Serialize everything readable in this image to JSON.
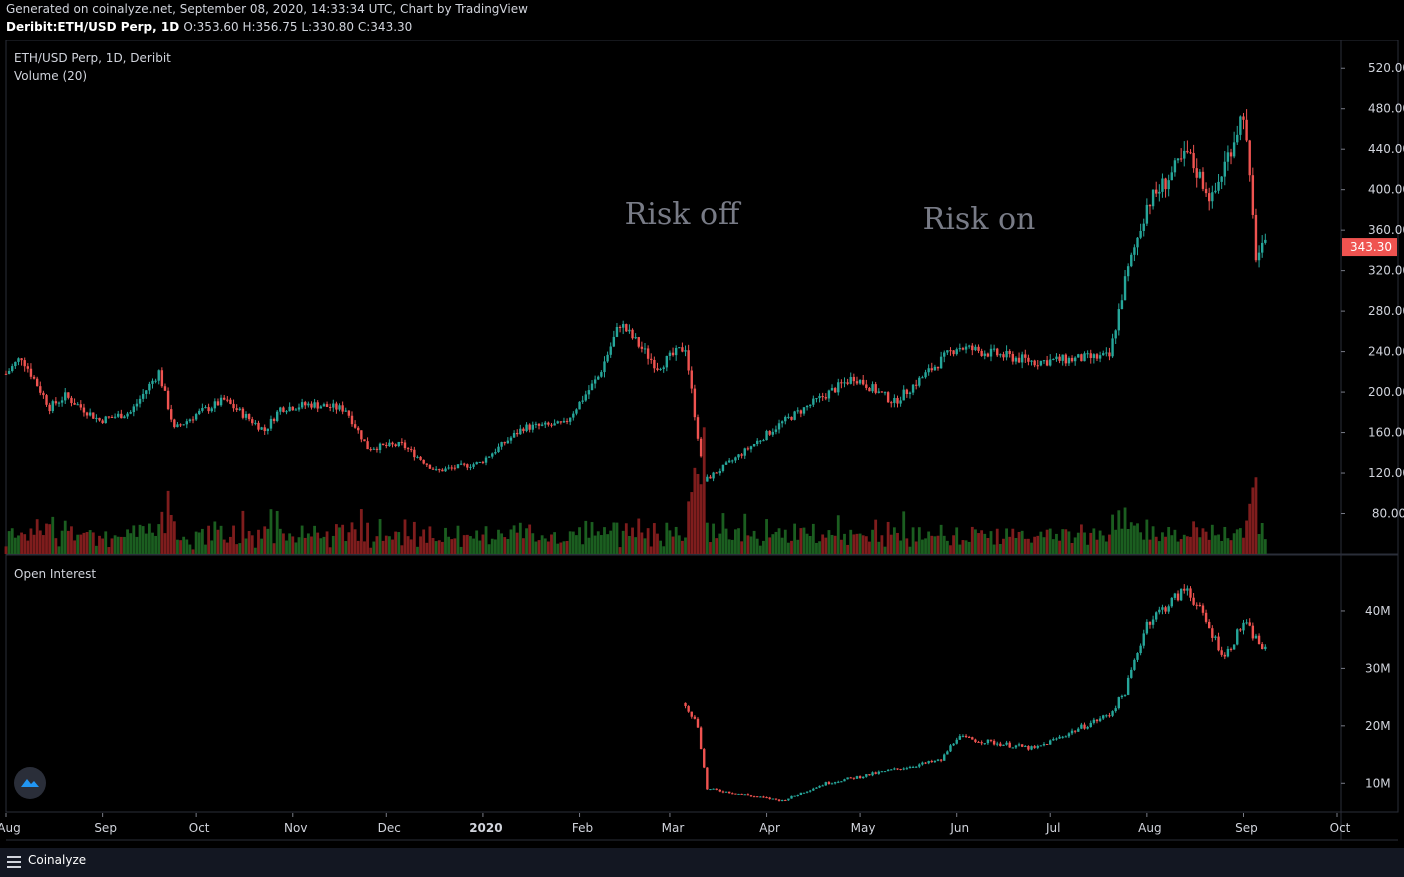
{
  "header": {
    "generated": "Generated on coinalyze.net, September 08, 2020, 14:33:34 UTC, Chart by TradingView",
    "symbol_line": "Deribit:ETH/USD Perp, 1D",
    "ohlc": "O:353.60 H:356.75 L:330.80 C:343.30"
  },
  "footer": {
    "brand": "Coinalyze"
  },
  "colors": {
    "up": "#26a69a",
    "down": "#ef5350",
    "up_vol": "#1b5e20",
    "down_vol": "#7f1d1d",
    "annotation": "#787b86",
    "last_price": "#ef5350"
  },
  "icons": [
    "menu-icon",
    "coinalyze-logo-icon"
  ],
  "chart_data": [
    {
      "type": "candlestick",
      "title": "ETH/USD Perp, 1D, Deribit",
      "indicator": "Volume (20)",
      "ylim": [
        40,
        540
      ],
      "y_ticks": [
        "520.00",
        "480.00",
        "440.00",
        "400.00",
        "360.00",
        "320.00",
        "280.00",
        "240.00",
        "200.00",
        "160.00",
        "120.00",
        "80.00"
      ],
      "last_price_label": "343.30",
      "annotations": [
        "Risk off",
        "Risk on"
      ],
      "x_ticks": [
        "Aug",
        "Sep",
        "Oct",
        "Nov",
        "Dec",
        "2020",
        "Feb",
        "Mar",
        "Apr",
        "May",
        "Jun",
        "Jul",
        "Aug",
        "Sep",
        "Oct"
      ],
      "x_range": [
        "2019-08-01",
        "2020-10-01"
      ],
      "series": [
        {
          "date": "2019-08-01",
          "close": 218
        },
        {
          "date": "2019-08-06",
          "close": 235
        },
        {
          "date": "2019-08-15",
          "close": 185
        },
        {
          "date": "2019-08-20",
          "close": 196
        },
        {
          "date": "2019-08-31",
          "close": 172
        },
        {
          "date": "2019-09-10",
          "close": 180
        },
        {
          "date": "2019-09-19",
          "close": 220
        },
        {
          "date": "2019-09-24",
          "close": 163
        },
        {
          "date": "2019-10-01",
          "close": 178
        },
        {
          "date": "2019-10-10",
          "close": 192
        },
        {
          "date": "2019-10-23",
          "close": 162
        },
        {
          "date": "2019-10-28",
          "close": 184
        },
        {
          "date": "2019-11-07",
          "close": 188
        },
        {
          "date": "2019-11-18",
          "close": 183
        },
        {
          "date": "2019-11-25",
          "close": 145
        },
        {
          "date": "2019-12-06",
          "close": 148
        },
        {
          "date": "2019-12-17",
          "close": 122
        },
        {
          "date": "2019-12-31",
          "close": 130
        },
        {
          "date": "2020-01-14",
          "close": 165
        },
        {
          "date": "2020-01-27",
          "close": 168
        },
        {
          "date": "2020-02-07",
          "close": 215
        },
        {
          "date": "2020-02-14",
          "close": 268
        },
        {
          "date": "2020-02-26",
          "close": 225
        },
        {
          "date": "2020-03-06",
          "close": 245
        },
        {
          "date": "2020-03-12",
          "close": 112
        },
        {
          "date": "2020-03-20",
          "close": 130
        },
        {
          "date": "2020-04-06",
          "close": 170
        },
        {
          "date": "2020-04-29",
          "close": 215
        },
        {
          "date": "2020-05-12",
          "close": 190
        },
        {
          "date": "2020-06-01",
          "close": 245
        },
        {
          "date": "2020-06-26",
          "close": 230
        },
        {
          "date": "2020-07-20",
          "close": 235
        },
        {
          "date": "2020-07-25",
          "close": 310
        },
        {
          "date": "2020-08-01",
          "close": 385
        },
        {
          "date": "2020-08-14",
          "close": 435
        },
        {
          "date": "2020-08-22",
          "close": 390
        },
        {
          "date": "2020-09-01",
          "close": 478
        },
        {
          "date": "2020-09-05",
          "close": 335
        },
        {
          "date": "2020-09-08",
          "close": 343.3
        }
      ]
    },
    {
      "type": "line",
      "title": "Open Interest",
      "ylim": [
        5,
        48
      ],
      "y_ticks": [
        "40M",
        "30M",
        "20M",
        "10M"
      ],
      "x_range": [
        "2019-08-01",
        "2020-10-01"
      ],
      "series": [
        {
          "date": "2020-03-06",
          "close": 24
        },
        {
          "date": "2020-03-10",
          "close": 20
        },
        {
          "date": "2020-03-13",
          "close": 9
        },
        {
          "date": "2020-04-06",
          "close": 7
        },
        {
          "date": "2020-04-20",
          "close": 10
        },
        {
          "date": "2020-05-27",
          "close": 14
        },
        {
          "date": "2020-06-01",
          "close": 18
        },
        {
          "date": "2020-06-26",
          "close": 16
        },
        {
          "date": "2020-07-20",
          "close": 22
        },
        {
          "date": "2020-07-25",
          "close": 26
        },
        {
          "date": "2020-08-01",
          "close": 38
        },
        {
          "date": "2020-08-14",
          "close": 44
        },
        {
          "date": "2020-08-26",
          "close": 32
        },
        {
          "date": "2020-09-01",
          "close": 38
        },
        {
          "date": "2020-09-08",
          "close": 33
        }
      ]
    }
  ]
}
